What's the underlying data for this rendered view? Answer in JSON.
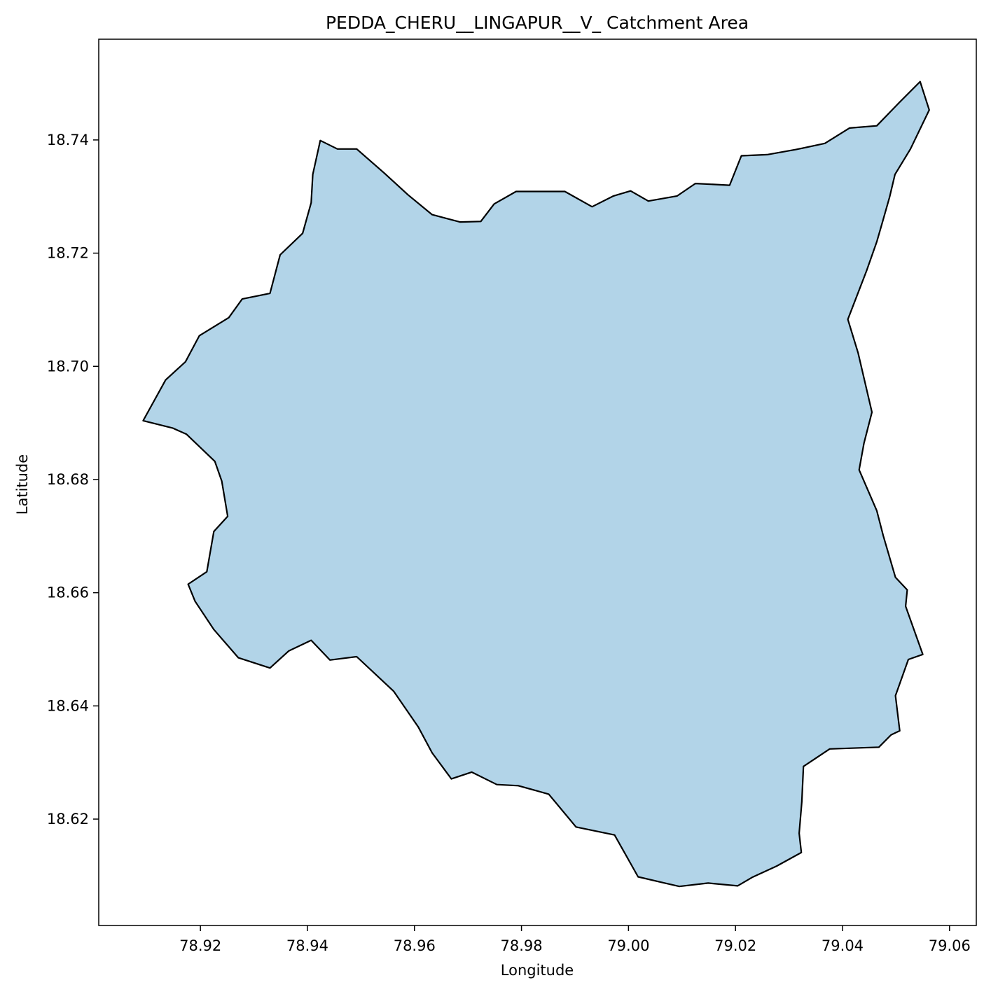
{
  "map": {
    "title": "PEDDA_CHERU__LINGAPUR__V_ Catchment Area",
    "xlabel": "Longitude",
    "ylabel": "Latitude",
    "xlim": [
      78.901,
      79.065
    ],
    "ylim": [
      18.6012,
      18.7578
    ],
    "x_ticks": [
      78.92,
      78.94,
      78.96,
      78.98,
      79.0,
      79.02,
      79.04,
      79.06
    ],
    "x_tick_labels": [
      "78.92",
      "78.94",
      "78.96",
      "78.98",
      "79.00",
      "79.02",
      "79.04",
      "79.06"
    ],
    "y_ticks": [
      18.62,
      18.64,
      18.66,
      18.68,
      18.7,
      18.72,
      18.74
    ],
    "y_tick_labels": [
      "18.62",
      "18.64",
      "18.66",
      "18.68",
      "18.70",
      "18.72",
      "18.74"
    ],
    "fill_color": "#b2d4e8",
    "edge_color": "#000000",
    "background_color": "#ffffff"
  },
  "chart_data": {
    "type": "area",
    "title": "PEDDA_CHERU__LINGAPUR__V_ Catchment Area",
    "xlabel": "Longitude",
    "ylabel": "Latitude",
    "xlim": [
      78.901,
      79.065
    ],
    "ylim": [
      18.6012,
      18.7578
    ],
    "grid": false,
    "series": [
      {
        "name": "",
        "x": [
          78.9424,
          78.9456,
          78.9492,
          78.9543,
          78.9588,
          78.9633,
          78.9685,
          78.9724,
          78.9749,
          78.979,
          78.9881,
          78.9932,
          78.9972,
          79.0004,
          79.0037,
          79.0091,
          79.0125,
          79.0189,
          79.0211,
          79.0259,
          79.0313,
          79.0367,
          79.0413,
          79.0464,
          79.0506,
          79.0545,
          79.0562,
          79.0527,
          79.0498,
          79.0488,
          79.0475,
          79.0464,
          79.0445,
          79.041,
          79.0429,
          79.0455,
          79.044,
          79.0431,
          79.0464,
          79.0476,
          79.0499,
          79.0521,
          79.0518,
          79.055,
          79.0523,
          79.0499,
          79.0507,
          79.0491,
          79.0468,
          79.0376,
          79.0327,
          79.0324,
          79.0319,
          79.0323,
          79.0277,
          79.0231,
          79.0204,
          79.0149,
          79.0095,
          79.0068,
          79.0018,
          78.9974,
          78.9902,
          78.9851,
          78.9794,
          78.9754,
          78.9707,
          78.9669,
          78.9633,
          78.9607,
          78.9561,
          78.9492,
          78.9442,
          78.9407,
          78.9365,
          78.933,
          78.9271,
          78.9225,
          78.919,
          78.9177,
          78.9212,
          78.9225,
          78.9251,
          78.924,
          78.9227,
          78.9174,
          78.9148,
          78.9093,
          78.9135,
          78.9172,
          78.9198,
          78.9253,
          78.9278,
          78.933,
          78.9349,
          78.9391,
          78.9407,
          78.941
        ],
        "y": [
          18.7399,
          18.7384,
          18.7384,
          18.7342,
          18.7303,
          18.7268,
          18.7255,
          18.7256,
          18.7287,
          18.7309,
          18.7309,
          18.7282,
          18.7301,
          18.731,
          18.7292,
          18.7301,
          18.7323,
          18.732,
          18.7372,
          18.7374,
          18.7383,
          18.7394,
          18.7421,
          18.7425,
          18.7466,
          18.7503,
          18.7453,
          18.7384,
          18.7339,
          18.7299,
          18.7256,
          18.722,
          18.7169,
          18.7083,
          18.7024,
          18.6919,
          18.6864,
          18.6817,
          18.6745,
          18.6701,
          18.6627,
          18.6605,
          18.6576,
          18.6491,
          18.6482,
          18.6418,
          18.6356,
          18.6349,
          18.6327,
          18.6324,
          18.6293,
          18.6231,
          18.6175,
          18.6141,
          18.6117,
          18.6097,
          18.6082,
          18.6087,
          18.6081,
          18.6087,
          18.6098,
          18.6172,
          18.6186,
          18.6244,
          18.6259,
          18.6261,
          18.6283,
          18.6271,
          18.6317,
          18.6363,
          18.6426,
          18.6487,
          18.6481,
          18.6516,
          18.6497,
          18.6467,
          18.6485,
          18.6535,
          18.6585,
          18.6615,
          18.6637,
          18.6708,
          18.6735,
          18.6797,
          18.6832,
          18.688,
          18.6891,
          18.6904,
          18.6976,
          18.7008,
          18.7054,
          18.7086,
          18.7119,
          18.7129,
          18.7197,
          18.7235,
          18.7289,
          18.7339
        ]
      }
    ]
  }
}
